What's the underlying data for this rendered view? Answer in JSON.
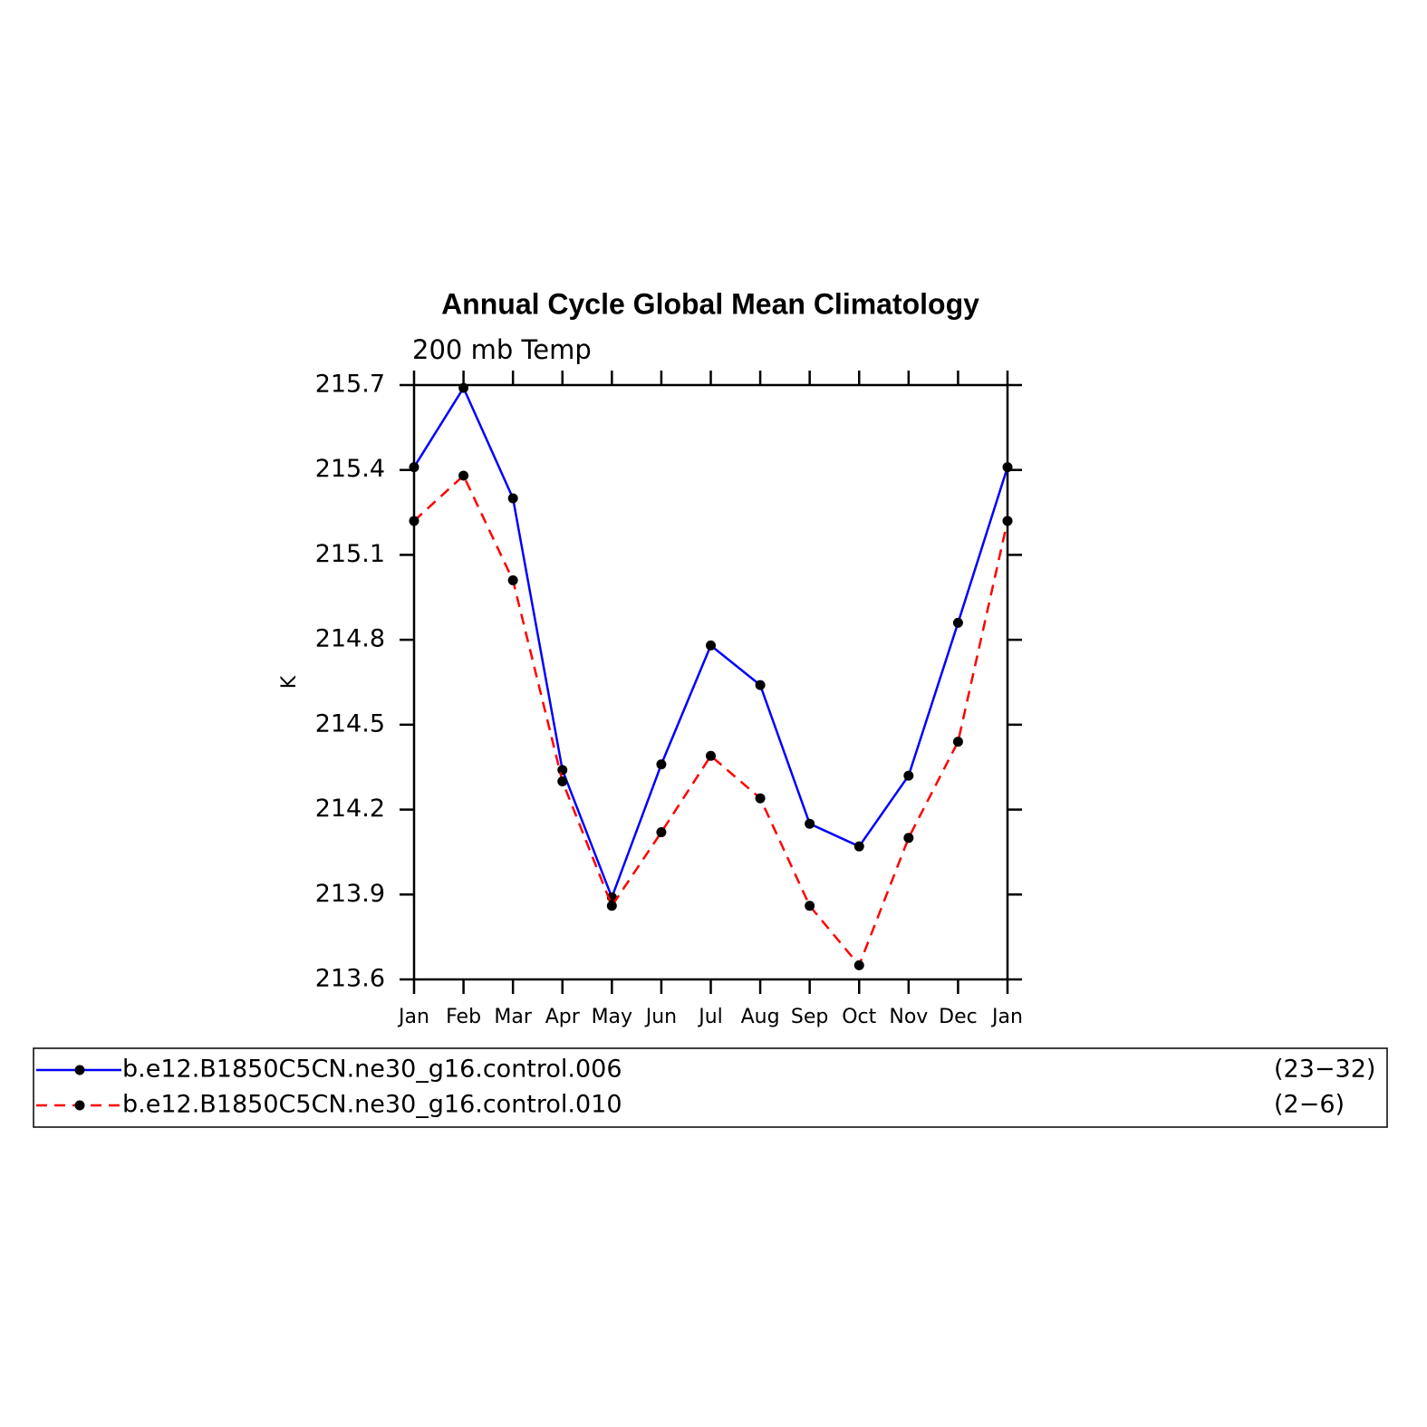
{
  "chart_data": {
    "type": "line",
    "title": "Annual Cycle Global Mean Climatology",
    "subtitle": "200 mb Temp",
    "y_label": "K",
    "categories": [
      "Jan",
      "Feb",
      "Mar",
      "Apr",
      "May",
      "Jun",
      "Jul",
      "Aug",
      "Sep",
      "Oct",
      "Nov",
      "Dec",
      "Jan"
    ],
    "series": [
      {
        "name": "b.e12.B1850C5CN.ne30_g16.control.006",
        "years": "(23−32)",
        "color": "#0000ff",
        "dash": false,
        "values": [
          215.41,
          215.69,
          215.3,
          214.34,
          213.89,
          214.36,
          214.78,
          214.64,
          214.15,
          214.07,
          214.32,
          214.86,
          215.41
        ]
      },
      {
        "name": "b.e12.B1850C5CN.ne30_g16.control.010",
        "years": "(2−6)",
        "color": "#ff0000",
        "dash": true,
        "values": [
          215.22,
          215.38,
          215.01,
          214.3,
          213.86,
          214.12,
          214.39,
          214.24,
          213.86,
          213.65,
          214.1,
          214.44,
          215.22
        ]
      }
    ],
    "ylim": [
      213.6,
      215.7
    ],
    "yticks": [
      213.6,
      213.9,
      214.2,
      214.5,
      214.8,
      215.1,
      215.4,
      215.7
    ],
    "marker_color": "#000000",
    "legend": "bottom"
  }
}
